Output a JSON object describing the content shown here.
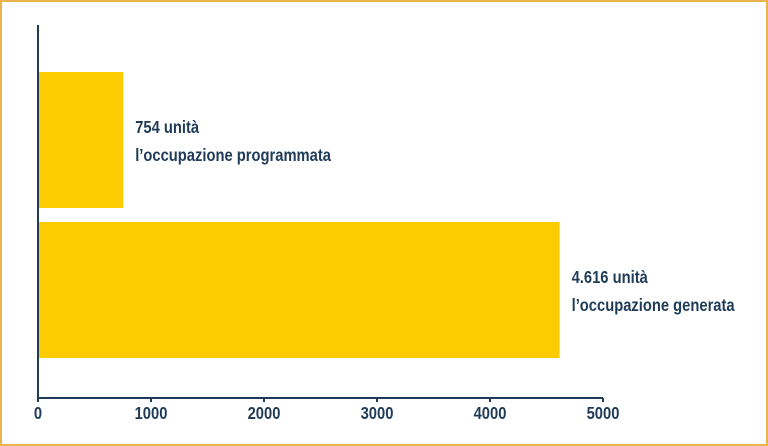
{
  "chart_data": {
    "type": "barh",
    "categories": [
      "l’occupazione programmata",
      "l’occupazione generata"
    ],
    "values": [
      754,
      4616
    ],
    "value_labels": [
      "754 unità",
      "4.616 unità"
    ],
    "color": "#fccc00",
    "xlim": [
      0,
      5000
    ],
    "xticks": [
      0,
      1000,
      2000,
      3000,
      4000,
      5000
    ]
  }
}
